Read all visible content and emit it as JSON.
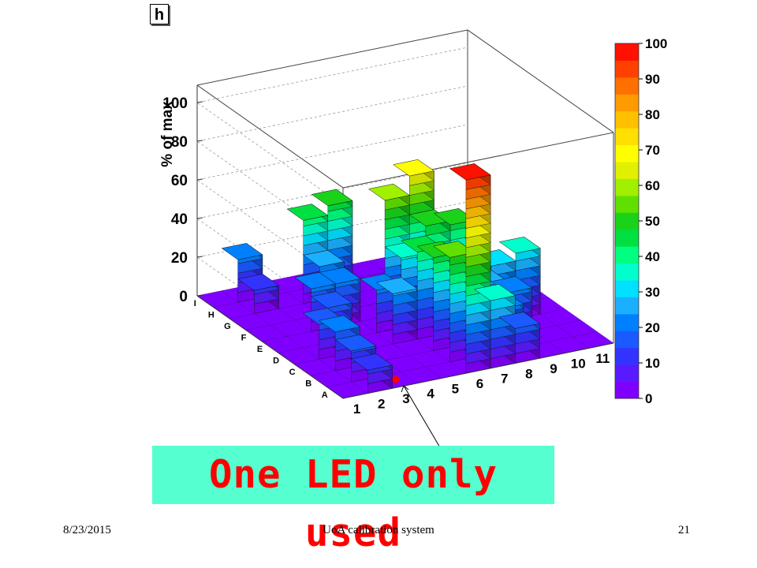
{
  "chart_data": {
    "type": "lego3d",
    "title": "h",
    "zlabel": "% of max",
    "x_ticks": [
      "1",
      "2",
      "3",
      "4",
      "5",
      "6",
      "7",
      "8",
      "9",
      "10",
      "11"
    ],
    "y_ticks": [
      "A",
      "B",
      "C",
      "D",
      "E",
      "F",
      "G",
      "H",
      "I"
    ],
    "z_ticks": [
      "0",
      "20",
      "40",
      "60",
      "80",
      "100"
    ],
    "zlim": [
      0,
      100
    ],
    "palette_ticks": [
      "0",
      "10",
      "20",
      "30",
      "40",
      "50",
      "60",
      "70",
      "80",
      "90",
      "100"
    ],
    "palette_colors": [
      "#8000ff",
      "#5a1aff",
      "#3333ff",
      "#1a5aff",
      "#0080ff",
      "#1ab0ff",
      "#00e0ff",
      "#00ffcc",
      "#00ff80",
      "#00e040",
      "#1ad21a",
      "#60e000",
      "#a0f000",
      "#e0f000",
      "#ffff00",
      "#ffe000",
      "#ffc000",
      "#ff9a00",
      "#ff7000",
      "#ff4000",
      "#ff1000"
    ],
    "bars": [
      {
        "x": 2,
        "y": "A",
        "value": 12
      },
      {
        "x": 2,
        "y": "B",
        "value": 16
      },
      {
        "x": 2,
        "y": "C",
        "value": 20
      },
      {
        "x": 2,
        "y": "D",
        "value": 18
      },
      {
        "x": 3,
        "y": "E",
        "value": 18
      },
      {
        "x": 3,
        "y": "F",
        "value": 22
      },
      {
        "x": 2,
        "y": "H",
        "value": 12
      },
      {
        "x": 2,
        "y": "I",
        "value": 22
      },
      {
        "x": 5,
        "y": "D",
        "value": 26
      },
      {
        "x": 5,
        "y": "E",
        "value": 22
      },
      {
        "x": 4,
        "y": "F",
        "value": 22
      },
      {
        "x": 4,
        "y": "G",
        "value": 25
      },
      {
        "x": 4,
        "y": "H",
        "value": 43
      },
      {
        "x": 5,
        "y": "H",
        "value": 48
      },
      {
        "x": 6,
        "y": "A",
        "value": 100
      },
      {
        "x": 6,
        "y": "B",
        "value": 54
      },
      {
        "x": 6,
        "y": "C",
        "value": 48
      },
      {
        "x": 6,
        "y": "D",
        "value": 45
      },
      {
        "x": 6,
        "y": "E",
        "value": 36
      },
      {
        "x": 6,
        "y": "F",
        "value": 60
      },
      {
        "x": 7,
        "y": "F",
        "value": 70
      },
      {
        "x": 7,
        "y": "E",
        "value": 50
      },
      {
        "x": 8,
        "y": "E",
        "value": 48
      },
      {
        "x": 7,
        "y": "A",
        "value": 35
      },
      {
        "x": 8,
        "y": "A",
        "value": 18
      },
      {
        "x": 8,
        "y": "B",
        "value": 22
      },
      {
        "x": 8,
        "y": "C",
        "value": 28
      },
      {
        "x": 9,
        "y": "C",
        "value": 22
      },
      {
        "x": 9,
        "y": "D",
        "value": 30
      },
      {
        "x": 10,
        "y": "D",
        "value": 34
      }
    ]
  },
  "callout": {
    "text": "One LED only used",
    "background": "#55ffd0",
    "color": "#ff0000"
  },
  "footer": {
    "date": "8/23/2015",
    "center": "UoA calibration system",
    "page": "21"
  }
}
